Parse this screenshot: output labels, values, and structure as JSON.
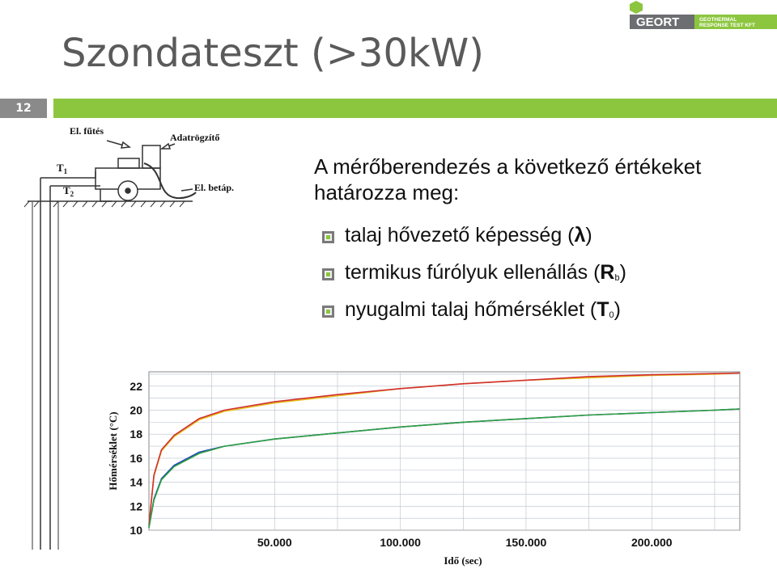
{
  "slide": {
    "title": "Szondateszt (>30kW)",
    "page_number": "12",
    "accent_color": "#8cc63f"
  },
  "logo": {
    "brand": "GEORT",
    "tagline_line1": "GEOTHERMAL",
    "tagline_line2": "RESPONSE TEST KFT"
  },
  "content": {
    "intro": "A mérőberendezés a következő értékeket határozza meg:",
    "bullets": [
      {
        "text": "talaj hővezető képesség (",
        "symbol": "λ",
        "sub": "",
        "close": ")"
      },
      {
        "text": "termikus fúrólyuk ellenállás (",
        "symbol": "R",
        "sub": "b",
        "close": ")"
      },
      {
        "text": "nyugalmi talaj hőmérséklet (",
        "symbol": "T",
        "sub": "0",
        "close": ")"
      }
    ]
  },
  "diagram": {
    "labels": {
      "heating": "El. fűtés",
      "logger": "Adatrögzítő",
      "power": "El. betáp.",
      "t1": "T",
      "t1_sub": "1",
      "t2": "T",
      "t2_sub": "2"
    }
  },
  "chart_data": {
    "type": "line",
    "xlabel": "Idő (sec)",
    "ylabel": "Hőmérséklet (°C)",
    "x_ticks": [
      "50.000",
      "100.000",
      "150.000",
      "200.000"
    ],
    "y_ticks": [
      "10",
      "12",
      "14",
      "16",
      "18",
      "20",
      "22"
    ],
    "xlim": [
      0,
      235000
    ],
    "ylim": [
      10,
      23.2
    ],
    "grid": true,
    "series": [
      {
        "color": "#e8c020",
        "x": [
          0,
          2000,
          5000,
          10000,
          20000,
          30000,
          50000,
          75000,
          100000,
          125000,
          150000,
          175000,
          200000,
          225000,
          235000
        ],
        "y": [
          10.4,
          14.5,
          16.6,
          17.8,
          19.2,
          19.9,
          20.6,
          21.2,
          21.8,
          22.2,
          22.5,
          22.7,
          22.9,
          23.0,
          23.1
        ]
      },
      {
        "color": "#d03030",
        "x": [
          0,
          2000,
          5000,
          10000,
          20000,
          30000,
          50000,
          75000,
          100000,
          125000,
          150000,
          175000,
          200000,
          225000,
          235000
        ],
        "y": [
          10.4,
          14.6,
          16.7,
          17.9,
          19.3,
          20.0,
          20.7,
          21.3,
          21.8,
          22.2,
          22.5,
          22.8,
          22.95,
          23.05,
          23.1
        ]
      },
      {
        "color": "#2040c0",
        "x": [
          0,
          2000,
          5000,
          10000,
          20000,
          30000,
          50000,
          75000,
          100000,
          125000,
          150000,
          175000,
          200000,
          225000,
          235000
        ],
        "y": [
          10.2,
          12.6,
          14.3,
          15.4,
          16.5,
          17.0,
          17.6,
          18.1,
          18.6,
          19.0,
          19.3,
          19.6,
          19.8,
          20.0,
          20.1
        ]
      },
      {
        "color": "#30a040",
        "x": [
          0,
          2000,
          5000,
          10000,
          20000,
          30000,
          50000,
          75000,
          100000,
          125000,
          150000,
          175000,
          200000,
          225000,
          235000
        ],
        "y": [
          10.2,
          12.5,
          14.2,
          15.3,
          16.4,
          17.0,
          17.6,
          18.1,
          18.6,
          19.0,
          19.3,
          19.6,
          19.8,
          20.0,
          20.1
        ]
      }
    ]
  }
}
